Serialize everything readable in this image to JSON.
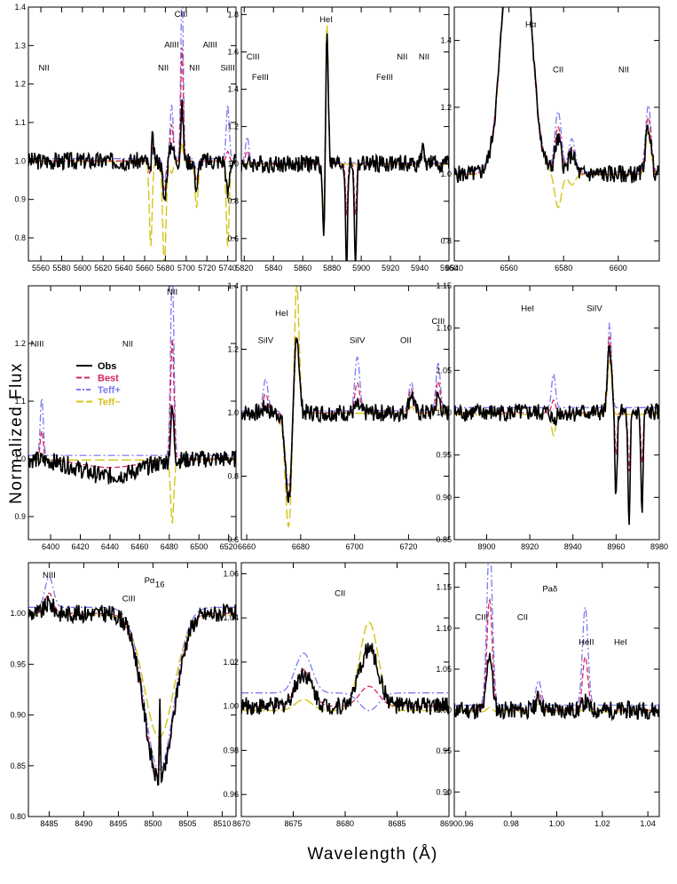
{
  "axes": {
    "xlabel": "Wavelength (Å)",
    "ylabel": "Normalized Flux"
  },
  "legend": {
    "placement": "panel-4-left",
    "entries": [
      {
        "name": "Obs",
        "color": "#000000",
        "dash": "solid"
      },
      {
        "name": "Best",
        "color": "#d6265f",
        "dash": "dashed"
      },
      {
        "name": "Teff+",
        "color": "#7b7bf0",
        "dash": "dash-dot"
      },
      {
        "name": "Teff−",
        "color": "#d4c416",
        "dash": "long-dashed"
      }
    ]
  },
  "chart_data": [
    {
      "type": "line",
      "xlim": [
        5548,
        5748
      ],
      "ylim": [
        0.74,
        1.4
      ],
      "xticks": [
        5560,
        5580,
        5600,
        5620,
        5640,
        5660,
        5680,
        5700,
        5720,
        5740
      ],
      "xticklabels": [
        "5560",
        "5580",
        "5600",
        "5620",
        "5640",
        "5660",
        "5680",
        "5700",
        "5720",
        "5740"
      ],
      "yticks": [
        0.8,
        0.9,
        1.0,
        1.1,
        1.2,
        1.3,
        1.4
      ],
      "yticklabels": [
        "0.8",
        "0.9",
        "1.0",
        "1.1",
        "1.2",
        "1.3",
        "1.4"
      ],
      "annotations": [
        {
          "text": "NII",
          "x": 5563,
          "y": 1.235
        },
        {
          "text": "NII",
          "x": 5678,
          "y": 1.235
        },
        {
          "text": "CIII",
          "x": 5695,
          "y": 1.375
        },
        {
          "text": "AlIII",
          "x": 5686,
          "y": 1.295
        },
        {
          "text": "NII",
          "x": 5708,
          "y": 1.235
        },
        {
          "text": "AlIII",
          "x": 5723,
          "y": 1.295
        },
        {
          "text": "SiIII",
          "x": 5740,
          "y": 1.235
        }
      ],
      "features": [
        {
          "x": 5666,
          "obs": -0.09,
          "hot": -0.05,
          "cool": -0.24,
          "w": 1.4
        },
        {
          "x": 5667,
          "obs": 0.12,
          "hot": 0.05,
          "cool": 0.03,
          "w": 1.2
        },
        {
          "x": 5679,
          "obs": -0.1,
          "hot": -0.06,
          "cool": -0.27,
          "w": 1.6
        },
        {
          "x": 5686,
          "obs": 0.05,
          "hot": 0.14,
          "cool": -0.03,
          "w": 1.5
        },
        {
          "x": 5696,
          "obs": 0.14,
          "hot": 0.45,
          "cool": 0.05,
          "w": 1.2
        },
        {
          "x": 5710,
          "obs": -0.07,
          "hot": -0.03,
          "cool": -0.12,
          "w": 1.5
        },
        {
          "x": 5740,
          "obs": -0.09,
          "hot": 0.14,
          "cool": -0.22,
          "w": 1.4
        }
      ]
    },
    {
      "type": "line",
      "xlim": [
        5818,
        5960
      ],
      "ylim": [
        0.48,
        1.84
      ],
      "xticks": [
        5820,
        5840,
        5860,
        5880,
        5900,
        5920,
        5940,
        5960
      ],
      "xticklabels": [
        "5820",
        "5840",
        "5860",
        "5880",
        "5900",
        "5920",
        "5940",
        "5960"
      ],
      "yticks": [
        0.6,
        0.8,
        1.0,
        1.2,
        1.4,
        1.6,
        1.8
      ],
      "yticklabels": [
        "0.6",
        "0.8",
        "1.0",
        "1.2",
        "1.4",
        "1.6",
        "1.8"
      ],
      "annotations": [
        {
          "text": "HeI",
          "x": 5876,
          "y": 1.76
        },
        {
          "text": "CIII",
          "x": 5826,
          "y": 1.56
        },
        {
          "text": "FeIII",
          "x": 5831,
          "y": 1.45
        },
        {
          "text": "NII",
          "x": 5928,
          "y": 1.56
        },
        {
          "text": "NII",
          "x": 5943,
          "y": 1.56
        },
        {
          "text": "FeIII",
          "x": 5916,
          "y": 1.45
        }
      ],
      "features": [
        {
          "x": 5874.5,
          "obs": -0.42,
          "hot": -0.38,
          "cool": -0.32,
          "w": 0.9
        },
        {
          "x": 5876.5,
          "obs": 0.75,
          "hot": 0.7,
          "cool": 0.78,
          "w": 0.9
        },
        {
          "x": 5890,
          "obs": -0.55,
          "hot": 0,
          "cool": 0,
          "w": 0.7
        },
        {
          "x": 5896,
          "obs": -0.55,
          "hot": 0,
          "cool": 0,
          "w": 0.7
        },
        {
          "x": 5822,
          "obs": 0,
          "hot": 0.14,
          "cool": 0,
          "w": 1.2
        },
        {
          "x": 5942,
          "obs": 0.07,
          "hot": 0.1,
          "cool": 0.04,
          "w": 1.2
        }
      ]
    },
    {
      "type": "line",
      "xlim": [
        6540,
        6615
      ],
      "ylim": [
        0.74,
        1.5
      ],
      "xticks": [
        6540,
        6560,
        6580,
        6600
      ],
      "xticklabels": [
        "6540",
        "6560",
        "6580",
        "6600"
      ],
      "yticks": [
        0.8,
        1.0,
        1.2,
        1.4
      ],
      "yticklabels": [
        "0.8",
        "1.0",
        "1.2",
        "1.4"
      ],
      "annotations": [
        {
          "text": "Hα",
          "x": 6568,
          "y": 1.44
        },
        {
          "text": "CII",
          "x": 6578,
          "y": 1.305
        },
        {
          "text": "NII",
          "x": 6602,
          "y": 1.305
        }
      ],
      "features": [
        {
          "x": 6562.8,
          "obs": 1.05,
          "hot": 1.05,
          "cool": 1.05,
          "w": 4.2
        },
        {
          "x": 6578,
          "obs": 0.1,
          "hot": 0.18,
          "cool": -0.1,
          "w": 1.2
        },
        {
          "x": 6583,
          "obs": 0.06,
          "hot": 0.1,
          "cool": -0.03,
          "w": 1.2
        },
        {
          "x": 6611,
          "obs": 0.14,
          "hot": 0.2,
          "cool": 0.13,
          "w": 1.0
        }
      ]
    },
    {
      "type": "line",
      "xlim": [
        6385,
        6525
      ],
      "ylim": [
        0.86,
        1.3
      ],
      "xticks": [
        6400,
        6420,
        6440,
        6460,
        6480,
        6500,
        6520
      ],
      "xticklabels": [
        "6400",
        "6420",
        "6440",
        "6460",
        "6480",
        "6500",
        "6520"
      ],
      "yticks": [
        0.9,
        1.0,
        1.1,
        1.2
      ],
      "yticklabels": [
        "0.9",
        "1.0",
        "1.1",
        "1.2"
      ],
      "annotations": [
        {
          "text": "NII",
          "x": 6482,
          "y": 1.285
        },
        {
          "text": "NIII",
          "x": 6391,
          "y": 1.195
        },
        {
          "text": "NII",
          "x": 6452,
          "y": 1.195
        }
      ],
      "features": [
        {
          "x": 6394,
          "obs": 0,
          "hot": 0.1,
          "cool": 0,
          "w": 1.0
        },
        {
          "x": 6482,
          "obs": 0.09,
          "hot": 0.33,
          "cool": -0.11,
          "w": 1.1
        },
        {
          "x": 6440,
          "obs": -0.03,
          "hot": 0,
          "cool": 0,
          "w": 20
        }
      ]
    },
    {
      "type": "line",
      "xlim": [
        6658,
        6735
      ],
      "ylim": [
        0.6,
        1.4
      ],
      "xticks": [
        6660,
        6680,
        6700,
        6720
      ],
      "xticklabels": [
        "6660",
        "6680",
        "6700",
        "6720"
      ],
      "yticks": [
        0.6,
        0.8,
        1.0,
        1.2,
        1.4
      ],
      "yticklabels": [
        "0.6",
        "0.8",
        "1.0",
        "1.2",
        "1.4"
      ],
      "annotations": [
        {
          "text": "HeI",
          "x": 6673,
          "y": 1.305
        },
        {
          "text": "SiIV",
          "x": 6667,
          "y": 1.22
        },
        {
          "text": "SiIV",
          "x": 6701,
          "y": 1.22
        },
        {
          "text": "OII",
          "x": 6719,
          "y": 1.22
        },
        {
          "text": "CIII",
          "x": 6731,
          "y": 1.28
        }
      ],
      "features": [
        {
          "x": 6675.5,
          "obs": -0.27,
          "hot": -0.24,
          "cool": -0.36,
          "w": 1.2
        },
        {
          "x": 6678.5,
          "obs": 0.26,
          "hot": 0.24,
          "cool": 0.42,
          "w": 0.9
        },
        {
          "x": 6667,
          "obs": 0.02,
          "hot": 0.1,
          "cool": 0,
          "w": 0.9
        },
        {
          "x": 6701,
          "obs": 0.02,
          "hot": 0.17,
          "cool": 0,
          "w": 0.9
        },
        {
          "x": 6721,
          "obs": 0.06,
          "hot": 0.09,
          "cool": 0.02,
          "w": 0.9
        },
        {
          "x": 6731,
          "obs": 0.05,
          "hot": 0.15,
          "cool": 0.02,
          "w": 0.8
        }
      ]
    },
    {
      "type": "line",
      "xlim": [
        8885,
        8980
      ],
      "ylim": [
        0.85,
        1.15
      ],
      "xticks": [
        8900,
        8920,
        8940,
        8960,
        8980
      ],
      "xticklabels": [
        "8900",
        "8920",
        "8940",
        "8960",
        "8980"
      ],
      "yticks": [
        0.85,
        0.9,
        0.95,
        1.0,
        1.05,
        1.1,
        1.15
      ],
      "yticklabels": [
        "0.85",
        "0.90",
        "0.95",
        "1.00",
        "1.05",
        "1.10",
        "1.15"
      ],
      "annotations": [
        {
          "text": "HeI",
          "x": 8919,
          "y": 1.12
        },
        {
          "text": "SiIV",
          "x": 8950,
          "y": 1.12
        }
      ],
      "features": [
        {
          "x": 8931,
          "obs": -0.01,
          "hot": 0.04,
          "cool": -0.025,
          "w": 0.9
        },
        {
          "x": 8957,
          "obs": 0.08,
          "hot": 0.1,
          "cool": 0.07,
          "w": 0.9
        },
        {
          "x": 8960,
          "obs": -0.1,
          "hot": 0,
          "cool": 0,
          "w": 0.5
        },
        {
          "x": 8966,
          "obs": -0.14,
          "hot": 0,
          "cool": 0,
          "w": 0.5
        },
        {
          "x": 8972,
          "obs": -0.12,
          "hot": 0,
          "cool": 0,
          "w": 0.5
        }
      ]
    },
    {
      "type": "line",
      "xlim": [
        8482,
        8512
      ],
      "ylim": [
        0.8,
        1.05
      ],
      "xticks": [
        8485,
        8490,
        8495,
        8500,
        8505,
        8510
      ],
      "xticklabels": [
        "8485",
        "8490",
        "8495",
        "8500",
        "8505",
        "8510"
      ],
      "yticks": [
        0.8,
        0.85,
        0.9,
        0.95,
        1.0
      ],
      "yticklabels": [
        "0.80",
        "0.85",
        "0.90",
        "0.95",
        "1.00"
      ],
      "annotations": [
        {
          "text": "NIII",
          "x": 8485,
          "y": 1.035
        },
        {
          "text": "Pα",
          "x": 8499.5,
          "y": 1.03
        },
        {
          "text": "16",
          "x": 8501,
          "y": 1.026
        },
        {
          "text": "CIII",
          "x": 8496.5,
          "y": 1.012
        }
      ],
      "features": [
        {
          "x": 8500.9,
          "obs": -0.165,
          "hot": -0.16,
          "cool": -0.12,
          "w": 2.1
        },
        {
          "x": 8501,
          "obs": 0.08,
          "hot": 0,
          "cool": 0,
          "w": 0.08
        },
        {
          "x": 8485,
          "obs": 0.01,
          "hot": 0.03,
          "cool": 0.01,
          "w": 0.6
        }
      ]
    },
    {
      "type": "line",
      "xlim": [
        8670,
        8690
      ],
      "ylim": [
        0.95,
        1.065
      ],
      "xticks": [
        8670,
        8675,
        8680,
        8685,
        8690
      ],
      "xticklabels": [
        "8670",
        "8675",
        "8680",
        "8685",
        "8690"
      ],
      "yticks": [
        0.96,
        0.98,
        1.0,
        1.02,
        1.04,
        1.06
      ],
      "yticklabels": [
        "0.96",
        "0.98",
        "1.00",
        "1.02",
        "1.04",
        "1.06"
      ],
      "annotations": [
        {
          "text": "CII",
          "x": 8679.5,
          "y": 1.05
        }
      ],
      "features": [
        {
          "x": 8676,
          "obs": 0.015,
          "hot": 0.018,
          "cool": 0.005,
          "w": 0.8
        },
        {
          "x": 8682.3,
          "obs": 0.026,
          "hot": -0.008,
          "cool": 0.04,
          "w": 0.9
        }
      ]
    },
    {
      "type": "line",
      "xlim": [
        0.955,
        1.045
      ],
      "ylim": [
        0.87,
        1.18
      ],
      "xticks": [
        0.96,
        0.98,
        1.0,
        1.02,
        1.04
      ],
      "xticklabels": [
        "0.96",
        "0.98",
        "1.00",
        "1.02",
        "1.04"
      ],
      "yticks": [
        0.9,
        0.95,
        1.0,
        1.05,
        1.1,
        1.15
      ],
      "yticklabels": [
        "0.90",
        "0.95",
        "1.00",
        "1.05",
        "1.10",
        "1.15"
      ],
      "annotations": [
        {
          "text": "Paδ",
          "x": 0.997,
          "y": 1.145
        },
        {
          "text": "CIII",
          "x": 0.967,
          "y": 1.11
        },
        {
          "text": "CII",
          "x": 0.985,
          "y": 1.11
        },
        {
          "text": "HeII",
          "x": 1.013,
          "y": 1.08
        },
        {
          "text": "HeI",
          "x": 1.028,
          "y": 1.08
        }
      ],
      "features": [
        {
          "x": 0.9705,
          "obs": 0.07,
          "hot": 0.2,
          "cool": 0.005,
          "w": 0.0012
        },
        {
          "x": 0.992,
          "obs": 0.015,
          "hot": 0.03,
          "cool": 0.01,
          "w": 0.0012
        },
        {
          "x": 1.0125,
          "obs": 0.01,
          "hot": 0.12,
          "cool": 0.005,
          "w": 0.0012
        }
      ]
    }
  ]
}
